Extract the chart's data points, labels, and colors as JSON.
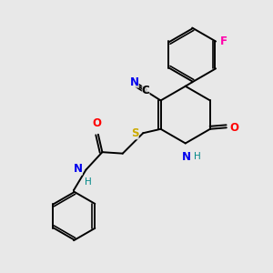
{
  "background_color": "#e8e8e8",
  "atoms": {
    "colors": {
      "C": "#000000",
      "N": "#0000ee",
      "O": "#ff0000",
      "S": "#ccaa00",
      "F": "#ff00aa",
      "H": "#008888"
    }
  },
  "figsize": [
    3.0,
    3.0
  ],
  "dpi": 100,
  "bond_lw": 1.4,
  "font_size": 8.5
}
